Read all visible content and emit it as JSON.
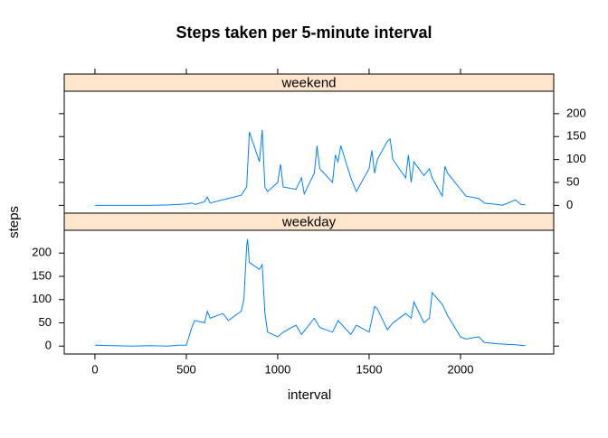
{
  "chart_data": {
    "type": "line",
    "title": "Steps taken per 5-minute interval",
    "x_label": "interval",
    "y_label": "steps",
    "xlim": [
      -168,
      2510
    ],
    "xticks": [
      0,
      500,
      1000,
      1500,
      2000
    ],
    "ylim": [
      -17,
      249
    ],
    "yticks": [
      0,
      50,
      100,
      150,
      200
    ],
    "series": [
      {
        "name": "weekend",
        "color": "#0080ff",
        "x": [
          0,
          100,
          200,
          300,
          400,
          450,
          500,
          530,
          550,
          600,
          615,
          630,
          700,
          730,
          800,
          830,
          845,
          900,
          915,
          930,
          945,
          1000,
          1015,
          1030,
          1100,
          1130,
          1145,
          1200,
          1215,
          1230,
          1300,
          1315,
          1330,
          1345,
          1400,
          1430,
          1500,
          1515,
          1530,
          1545,
          1600,
          1615,
          1630,
          1700,
          1715,
          1730,
          1745,
          1800,
          1830,
          1845,
          1900,
          1915,
          1930,
          2000,
          2030,
          2100,
          2130,
          2200,
          2230,
          2300,
          2330,
          2355
        ],
        "values": [
          0,
          0,
          0,
          0,
          1,
          2,
          3,
          5,
          2,
          8,
          18,
          5,
          12,
          15,
          22,
          40,
          160,
          95,
          165,
          40,
          30,
          50,
          90,
          40,
          35,
          60,
          25,
          70,
          130,
          80,
          50,
          110,
          95,
          130,
          60,
          30,
          80,
          120,
          70,
          100,
          140,
          145,
          100,
          60,
          110,
          50,
          95,
          65,
          80,
          60,
          20,
          85,
          70,
          35,
          20,
          15,
          5,
          2,
          0,
          12,
          2,
          1
        ]
      },
      {
        "name": "weekday",
        "color": "#0080ff",
        "x": [
          0,
          100,
          200,
          300,
          400,
          450,
          500,
          530,
          545,
          600,
          615,
          630,
          700,
          730,
          800,
          815,
          830,
          835,
          845,
          900,
          915,
          930,
          945,
          1000,
          1030,
          1100,
          1130,
          1200,
          1230,
          1300,
          1330,
          1400,
          1430,
          1500,
          1530,
          1545,
          1600,
          1630,
          1700,
          1730,
          1745,
          1800,
          1830,
          1845,
          1900,
          1930,
          2000,
          2030,
          2100,
          2130,
          2200,
          2300,
          2355
        ],
        "values": [
          2,
          1,
          0,
          1,
          0,
          2,
          2,
          40,
          55,
          50,
          75,
          60,
          70,
          55,
          75,
          100,
          215,
          230,
          180,
          165,
          175,
          70,
          30,
          20,
          30,
          45,
          25,
          60,
          40,
          30,
          55,
          25,
          45,
          30,
          85,
          80,
          35,
          50,
          70,
          60,
          95,
          50,
          60,
          115,
          90,
          65,
          20,
          15,
          20,
          8,
          5,
          3,
          1
        ]
      }
    ]
  }
}
